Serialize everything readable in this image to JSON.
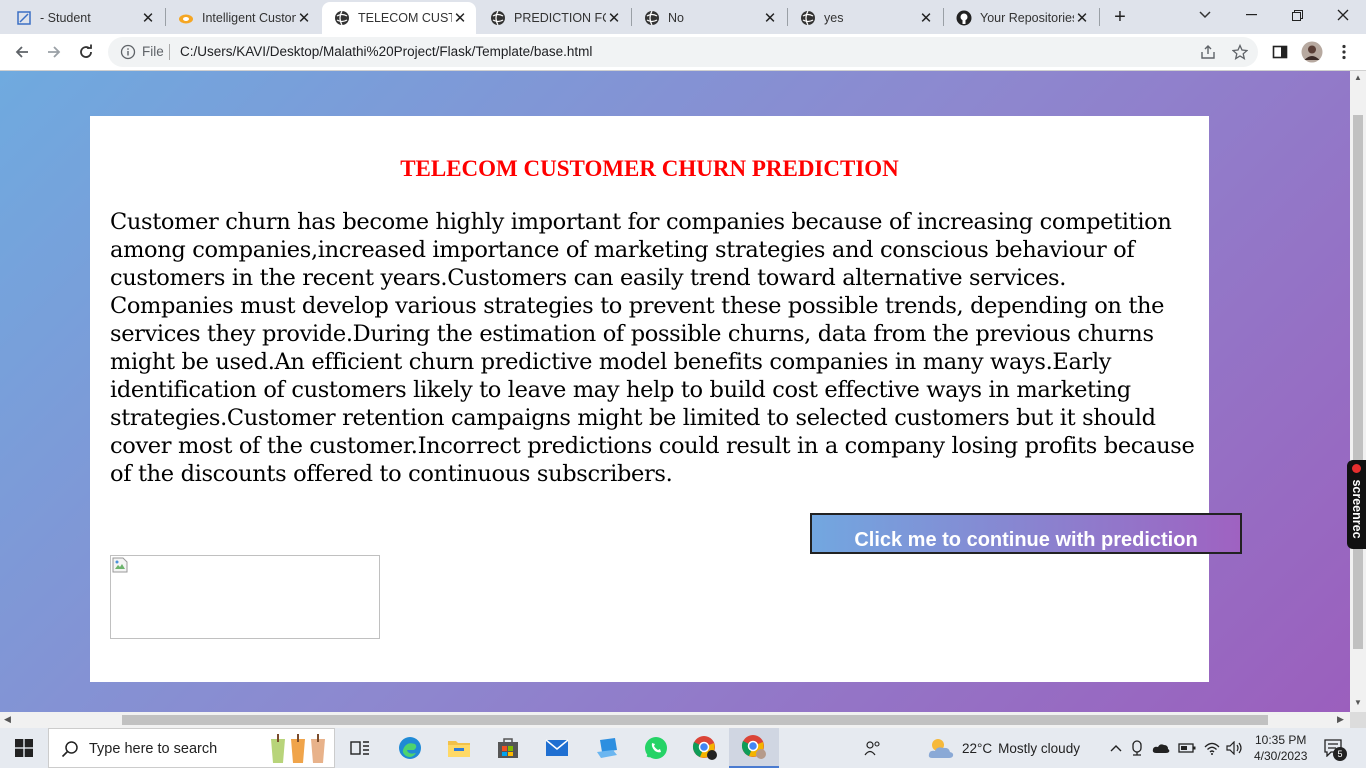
{
  "browser": {
    "tabs": [
      {
        "title": "- Student",
        "icon": "student-app-icon"
      },
      {
        "title": "Intelligent Custon",
        "icon": "ibm-cloud-icon"
      },
      {
        "title": "TELECOM CUSTO",
        "icon": "globe-icon",
        "active": true
      },
      {
        "title": "PREDICTION FOR",
        "icon": "globe-icon"
      },
      {
        "title": "No",
        "icon": "globe-icon"
      },
      {
        "title": "yes",
        "icon": "globe-icon"
      },
      {
        "title": "Your Repositories",
        "icon": "github-icon"
      }
    ],
    "close_glyph": "✕",
    "new_tab_glyph": "+",
    "address": {
      "scheme_label": "File",
      "url": "C:/Users/KAVI/Desktop/Malathi%20Project/Flask/Template/base.html"
    }
  },
  "page": {
    "title": "TELECOM CUSTOMER CHURN PREDICTION",
    "paragraph": "Customer churn has become highly important for companies because of increasing competition among companies,increased importance of marketing strategies and conscious behaviour of customers in the recent years.Customers can easily trend toward alternative services. Companies must develop various strategies to prevent these possible trends, depending on the services they provide.During the estimation of possible churns, data from the previous churns might be used.An efficient churn predictive model benefits companies in many ways.Early identification of customers likely to leave may help to build cost effective ways in marketing strategies.Customer retention campaigns might be limited to selected customers but it should cover most of the customer.Incorrect predictions could result in a company losing profits because of the discounts offered to continuous subscribers.",
    "cta_label": "Click me to continue with prediction",
    "background_gradient": [
      "#6faadf",
      "#9b5fbd"
    ]
  },
  "overlay": {
    "screenrec_label": "screenrec"
  },
  "taskbar": {
    "search_placeholder": "Type here to search",
    "weather": {
      "temp": "22°C",
      "desc": "Mostly cloudy"
    },
    "clock": {
      "time": "10:35 PM",
      "date": "4/30/2023"
    },
    "notification_count": "5"
  }
}
